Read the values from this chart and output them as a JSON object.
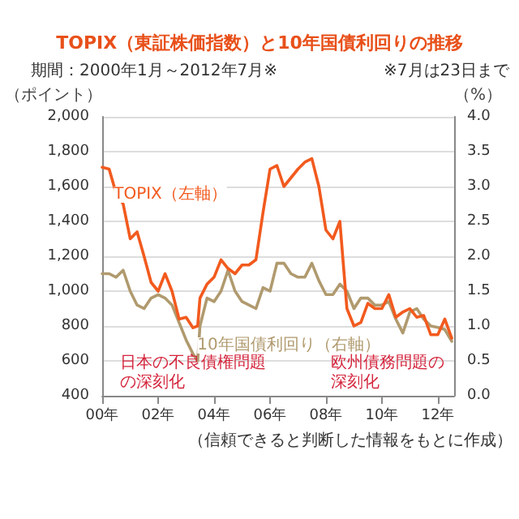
{
  "chart_data": {
    "type": "line",
    "title": "TOPIX（東証株価指数）と10年国債利回りの推移",
    "subtitle": "期間：2000年1月～2012年7月※",
    "ylabel": "（ポイント）",
    "y2label": "（%）",
    "x": [
      "2000-01",
      "2000-04",
      "2000-07",
      "2000-10",
      "2001-01",
      "2001-04",
      "2001-07",
      "2001-10",
      "2002-01",
      "2002-04",
      "2002-07",
      "2002-10",
      "2003-01",
      "2003-04",
      "2003-06",
      "2003-07",
      "2003-10",
      "2004-01",
      "2004-04",
      "2004-07",
      "2004-10",
      "2005-01",
      "2005-04",
      "2005-07",
      "2005-10",
      "2006-01",
      "2006-04",
      "2006-07",
      "2006-10",
      "2007-01",
      "2007-04",
      "2007-07",
      "2007-10",
      "2008-01",
      "2008-04",
      "2008-07",
      "2008-10",
      "2009-01",
      "2009-04",
      "2009-07",
      "2009-10",
      "2010-01",
      "2010-04",
      "2010-07",
      "2010-10",
      "2011-01",
      "2011-04",
      "2011-07",
      "2011-10",
      "2012-01",
      "2012-04",
      "2012-07"
    ],
    "series": [
      {
        "name": "TOPIX（左軸）",
        "color": "#f25a1e",
        "values": [
          1710,
          1700,
          1560,
          1500,
          1300,
          1340,
          1200,
          1050,
          1000,
          1100,
          1000,
          840,
          850,
          790,
          800,
          960,
          1040,
          1080,
          1180,
          1130,
          1100,
          1150,
          1150,
          1180,
          1450,
          1700,
          1720,
          1600,
          1650,
          1700,
          1740,
          1760,
          1600,
          1350,
          1300,
          1400,
          900,
          800,
          820,
          930,
          900,
          900,
          980,
          850,
          880,
          900,
          850,
          860,
          750,
          750,
          840,
          730
        ]
      },
      {
        "name": "10年国債利回り（右軸）",
        "color": "#b09a6e",
        "axis": "y2",
        "values": [
          1.75,
          1.75,
          1.7,
          1.8,
          1.5,
          1.3,
          1.25,
          1.4,
          1.45,
          1.4,
          1.3,
          1.05,
          0.8,
          0.6,
          0.5,
          1.0,
          1.4,
          1.35,
          1.5,
          1.8,
          1.5,
          1.35,
          1.3,
          1.25,
          1.55,
          1.5,
          1.9,
          1.9,
          1.75,
          1.7,
          1.7,
          1.9,
          1.65,
          1.45,
          1.45,
          1.6,
          1.5,
          1.25,
          1.4,
          1.4,
          1.3,
          1.3,
          1.35,
          1.1,
          0.9,
          1.2,
          1.25,
          1.1,
          1.0,
          0.98,
          0.95,
          0.78
        ]
      }
    ],
    "xlim": [
      "2000-01",
      "2012-08"
    ],
    "xticks": [
      {
        "value": "2000-01",
        "label": "00年"
      },
      {
        "value": "2002-01",
        "label": "02年"
      },
      {
        "value": "2004-01",
        "label": "04年"
      },
      {
        "value": "2006-01",
        "label": "06年"
      },
      {
        "value": "2008-01",
        "label": "08年"
      },
      {
        "value": "2010-01",
        "label": "10年"
      },
      {
        "value": "2012-01",
        "label": "12年"
      }
    ],
    "ylim": [
      400,
      2000
    ],
    "yticks": [
      {
        "value": 400,
        "label": "400"
      },
      {
        "value": 600,
        "label": "600"
      },
      {
        "value": 800,
        "label": "800"
      },
      {
        "value": 1000,
        "label": "1,000"
      },
      {
        "value": 1200,
        "label": "1,200"
      },
      {
        "value": 1400,
        "label": "1,400"
      },
      {
        "value": 1600,
        "label": "1,600"
      },
      {
        "value": 1800,
        "label": "1,800"
      },
      {
        "value": 2000,
        "label": "2,000"
      }
    ],
    "y2lim": [
      0,
      4
    ],
    "y2ticks": [
      {
        "value": 0,
        "label": "0.0"
      },
      {
        "value": 0.5,
        "label": "0.5"
      },
      {
        "value": 1,
        "label": "1.0"
      },
      {
        "value": 1.5,
        "label": "1.5"
      },
      {
        "value": 2,
        "label": "2.0"
      },
      {
        "value": 2.5,
        "label": "2.5"
      },
      {
        "value": 3,
        "label": "3.0"
      },
      {
        "value": 3.5,
        "label": "3.5"
      },
      {
        "value": 4,
        "label": "4.0"
      }
    ],
    "grid": "y",
    "legend": false,
    "marker": "none",
    "line_style": "solid",
    "annotations": [
      "※7月は23日まで",
      "（信頼できると判断した情報をもとに作成）",
      "日本の不良債権問題の深刻化",
      "欧州債務問題の深刻化"
    ]
  }
}
